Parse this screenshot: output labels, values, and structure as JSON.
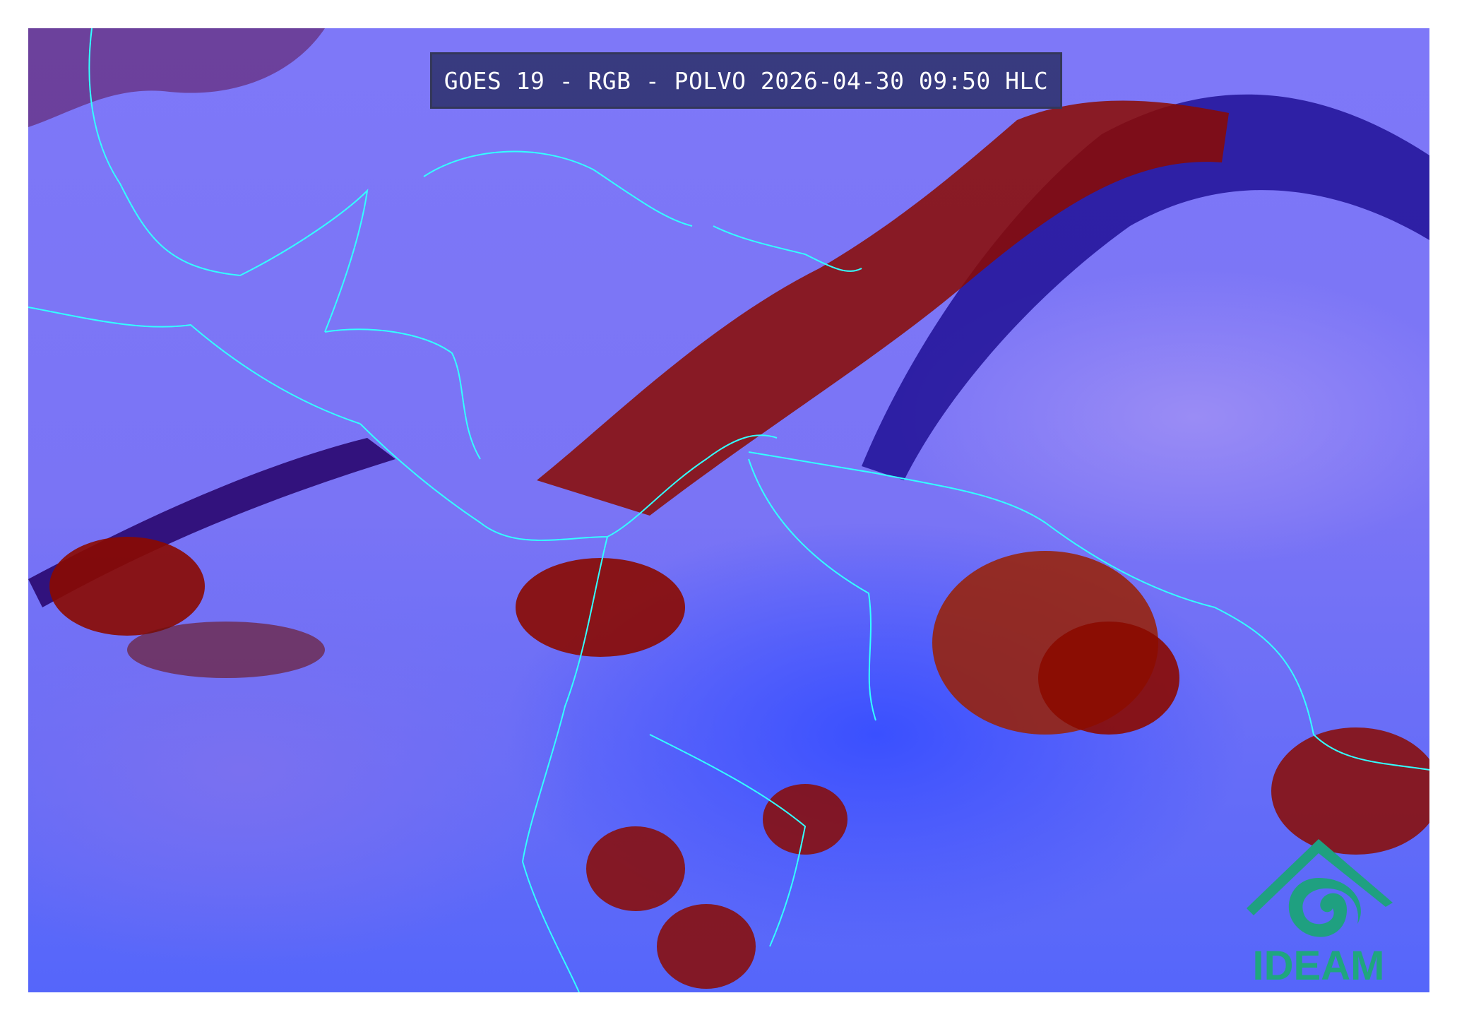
{
  "title": "GOES 19 - RGB - POLVO 2026-04-30 09:50 HLC",
  "logo": {
    "text": "IDEAM",
    "color": "#1fa67e"
  },
  "colors": {
    "clear_surface": "#7a74f5",
    "deep_cloud": "#8b0000",
    "coastline": "#33ffff",
    "low_cloud": "#3a50ff",
    "dust": "#c08080"
  }
}
